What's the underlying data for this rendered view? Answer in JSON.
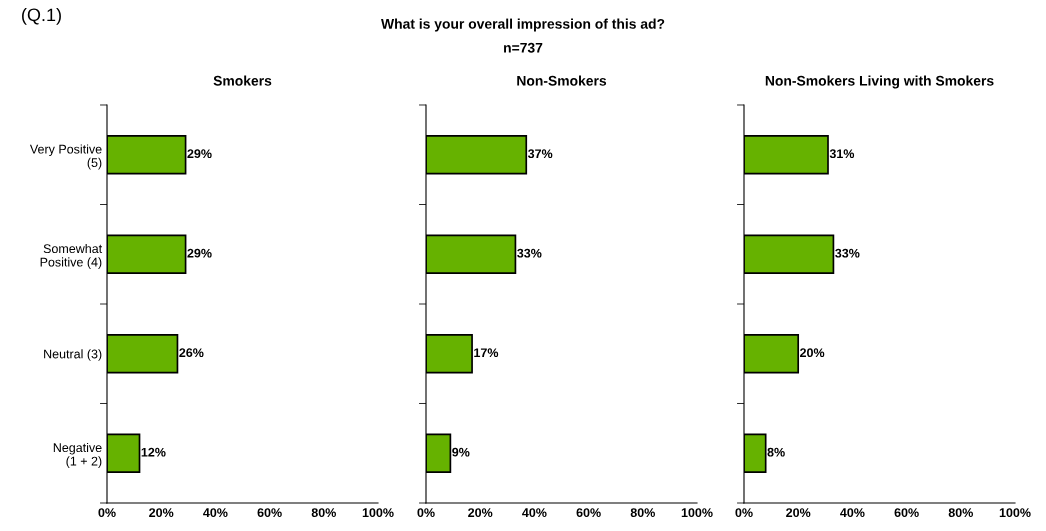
{
  "chart_data": [
    {
      "type": "bar",
      "orientation": "horizontal",
      "title": "Smokers",
      "annotations": [
        "(Q.1)",
        "What is your overall impression of this ad?",
        "n=737"
      ],
      "categories": [
        "Very Positive\n(5)",
        "Somewhat\nPositive (4)",
        "Neutral (3)",
        "Negative\n(1 + 2)"
      ],
      "values": [
        29,
        29,
        26,
        12
      ],
      "value_labels": [
        "29%",
        "29%",
        "26%",
        "12%"
      ],
      "color": "#66b200",
      "xlim": [
        0,
        100
      ],
      "xticks": [
        {
          "value": 0,
          "label": "0%"
        },
        {
          "value": 20,
          "label": "20%"
        },
        {
          "value": 40,
          "label": "40%"
        },
        {
          "value": 60,
          "label": "60%"
        },
        {
          "value": 80,
          "label": "80%"
        },
        {
          "value": 100,
          "label": "100%"
        }
      ],
      "grid": false,
      "legend": false
    },
    {
      "type": "bar",
      "orientation": "horizontal",
      "title": "Non-Smokers",
      "categories": [
        null,
        null,
        null,
        null
      ],
      "values": [
        37,
        33,
        17,
        9
      ],
      "value_labels": [
        "37%",
        "33%",
        "17%",
        "9%"
      ],
      "color": "#66b200",
      "xlim": [
        0,
        100
      ],
      "xticks": [
        {
          "value": 0,
          "label": "0%"
        },
        {
          "value": 20,
          "label": "20%"
        },
        {
          "value": 40,
          "label": "40%"
        },
        {
          "value": 60,
          "label": "60%"
        },
        {
          "value": 80,
          "label": "80%"
        },
        {
          "value": 100,
          "label": "100%"
        }
      ],
      "tick_labels": "x",
      "grid": false,
      "legend": false
    },
    {
      "type": "bar",
      "orientation": "horizontal",
      "title": "Non-Smokers Living with Smokers",
      "categories": [
        null,
        null,
        null,
        null
      ],
      "values": [
        31,
        33,
        20,
        8
      ],
      "value_labels": [
        "31%",
        "33%",
        "20%",
        "8%"
      ],
      "color": "#66b200",
      "xlim": [
        0,
        100
      ],
      "xticks": [
        {
          "value": 0,
          "label": "0%"
        },
        {
          "value": 20,
          "label": "20%"
        },
        {
          "value": 40,
          "label": "40%"
        },
        {
          "value": 60,
          "label": "60%"
        },
        {
          "value": 80,
          "label": "80%"
        },
        {
          "value": 100,
          "label": "100%"
        }
      ],
      "tick_labels": "x",
      "grid": false,
      "legend": false
    }
  ]
}
